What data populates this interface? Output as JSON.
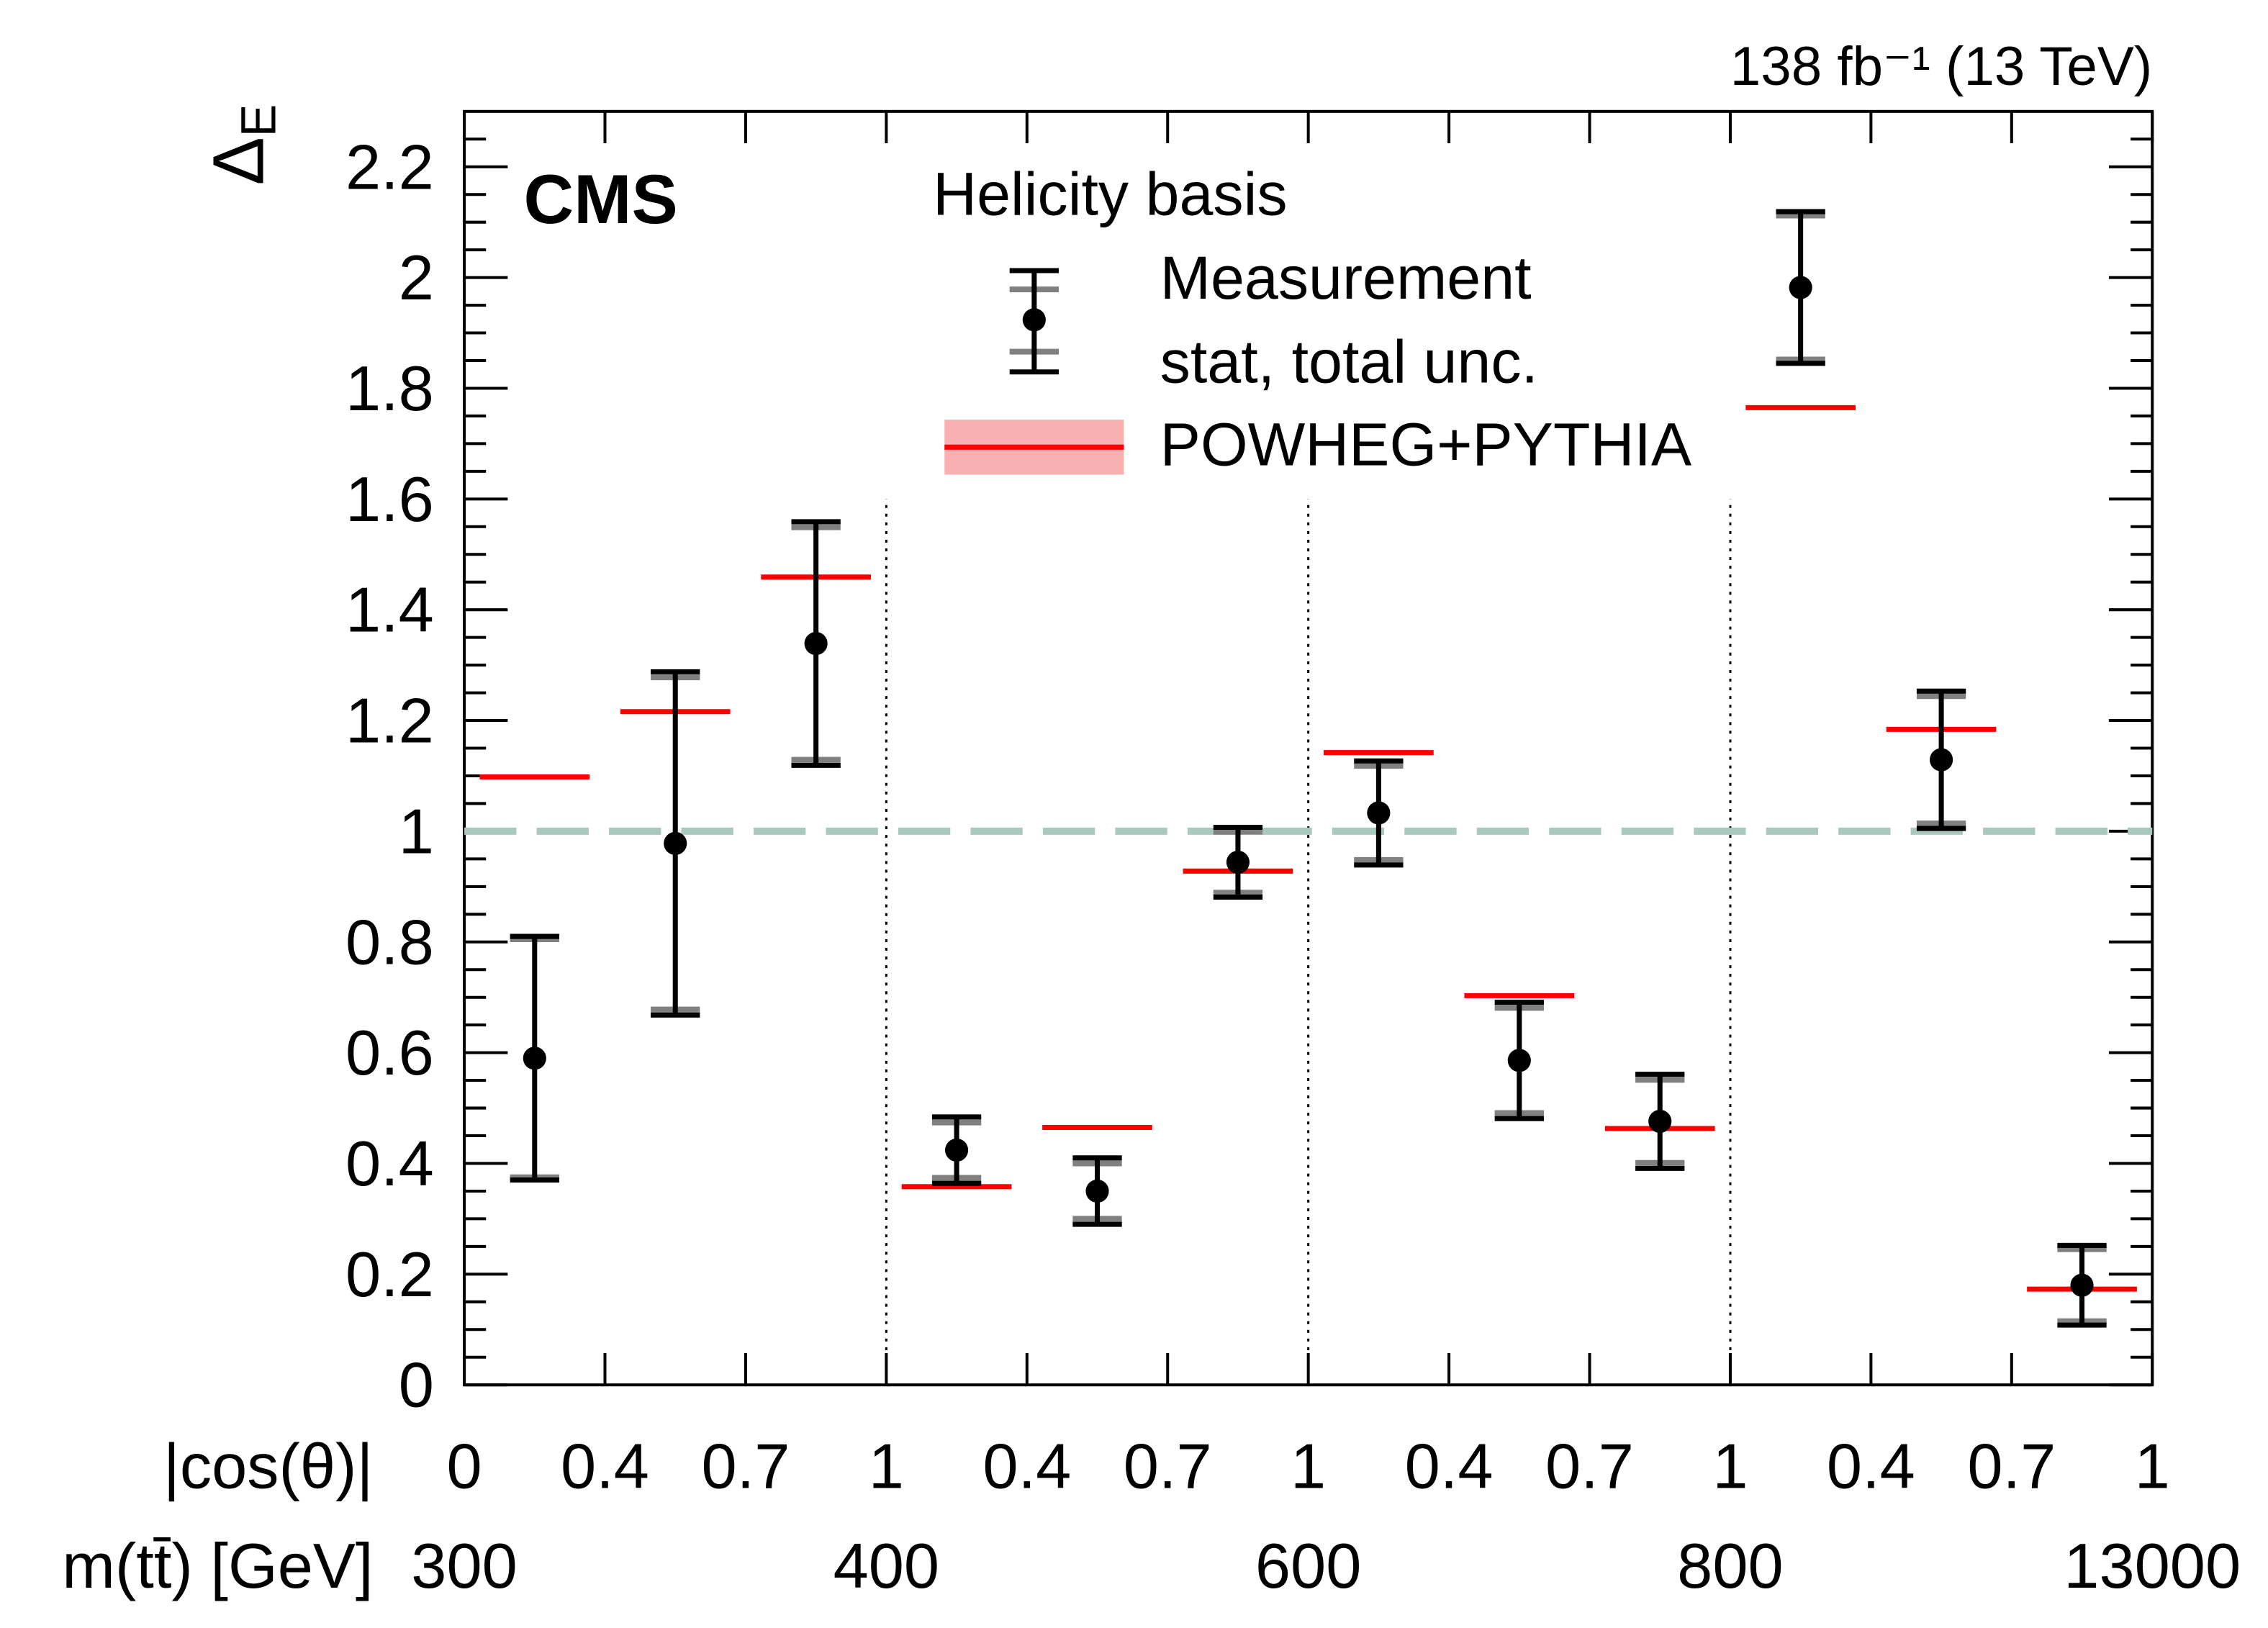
{
  "chart_data": {
    "type": "errorbar",
    "experiment": "CMS",
    "lumi_label": "138 fb⁻¹ (13 TeV)",
    "legend_title": "Helicity basis",
    "ylabel": "Δ",
    "ylabel_sub": "E",
    "ylim": [
      0,
      2.3
    ],
    "yticks": [
      0,
      0.2,
      0.4,
      0.6,
      0.8,
      1,
      1.2,
      1.4,
      1.6,
      1.8,
      2,
      2.2
    ],
    "xlabel_cos": "|cos(θ)|",
    "xlabel_mass": "m(tt̄) [GeV]",
    "cos_edge_labels": [
      "0",
      "0.4",
      "0.7",
      "1",
      "0.4",
      "0.7",
      "1",
      "0.4",
      "0.7",
      "1",
      "0.4",
      "0.7",
      "1"
    ],
    "mass_edge_labels": [
      "300",
      "400",
      "600",
      "800",
      "13000"
    ],
    "reference_line": {
      "value": 1,
      "color": "#a9c9bf"
    },
    "series": [
      {
        "name": "Measurement",
        "description": "stat, total unc.",
        "color": "#000000",
        "stat_color": "#808080",
        "values": [
          0.59,
          0.978,
          1.339,
          0.424,
          0.35,
          0.944,
          1.033,
          0.586,
          0.476,
          1.982,
          1.129,
          0.18
        ],
        "stat_errors": [
          0.215,
          0.3,
          0.21,
          0.05,
          0.05,
          0.055,
          0.085,
          0.095,
          0.075,
          0.13,
          0.115,
          0.065
        ],
        "errors": [
          0.22,
          0.31,
          0.22,
          0.06,
          0.06,
          0.063,
          0.094,
          0.105,
          0.085,
          0.137,
          0.124,
          0.072
        ]
      },
      {
        "name": "POWHEG+PYTHIA",
        "color": "#ff0000",
        "band_color": "#f8b0b0",
        "values": [
          1.098,
          1.216,
          1.459,
          0.358,
          0.465,
          0.928,
          1.142,
          0.703,
          0.463,
          1.765,
          1.184,
          0.173
        ]
      }
    ]
  }
}
